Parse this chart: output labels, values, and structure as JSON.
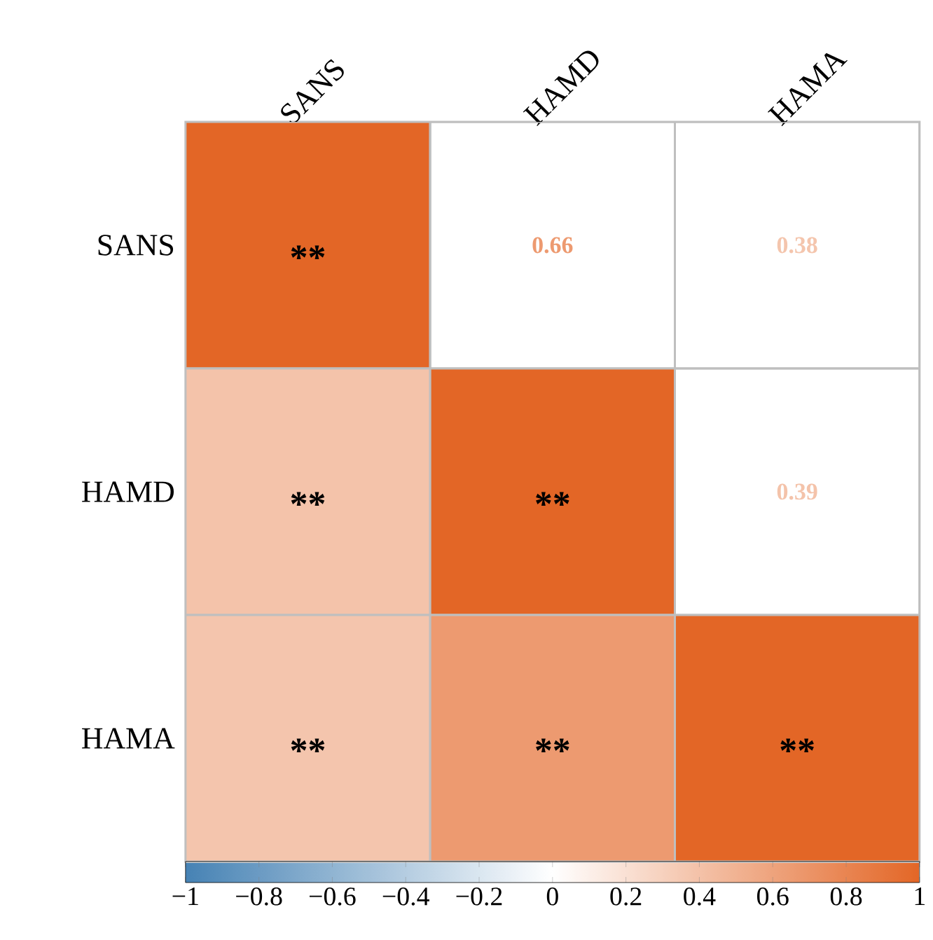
{
  "chart_data": {
    "type": "heatmap",
    "categories": [
      "SANS",
      "HAMD",
      "HAMA"
    ],
    "y_categories": [
      "SANS",
      "HAMD",
      "HAMA"
    ],
    "cells": [
      [
        1,
        null,
        null
      ],
      [
        0.39,
        1,
        null
      ],
      [
        0.38,
        0.66,
        1
      ]
    ],
    "cell_labels": [
      [
        "**",
        "0.66",
        "0.38"
      ],
      [
        "**",
        "**",
        "0.39"
      ],
      [
        "**",
        "**",
        "**"
      ]
    ],
    "clim": [
      -1,
      1
    ],
    "cticks": [
      {
        "value": -1,
        "label": "−1"
      },
      {
        "value": -0.8,
        "label": "−0.8"
      },
      {
        "value": -0.6,
        "label": "−0.6"
      },
      {
        "value": -0.4,
        "label": "−0.4"
      },
      {
        "value": -0.2,
        "label": "−0.2"
      },
      0,
      0.2,
      0.4,
      0.6,
      0.8,
      1
    ]
  }
}
